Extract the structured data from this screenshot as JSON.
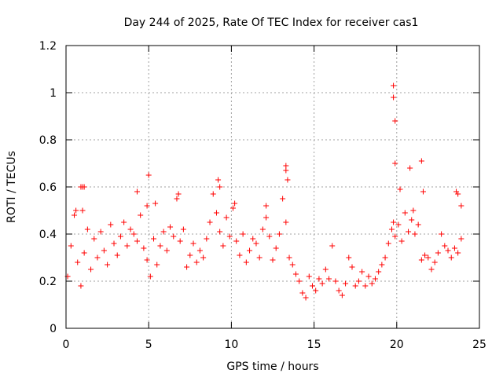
{
  "chart_data": {
    "type": "scatter",
    "title": "Day 244 of 2025, Rate Of TEC Index for receiver cas1",
    "xlabel": "GPS time / hours",
    "ylabel": "ROTI / TECUs",
    "xlim": [
      0,
      25
    ],
    "ylim": [
      0,
      1.2
    ],
    "xticks": [
      0,
      5,
      10,
      15,
      20,
      25
    ],
    "xtick_labels": [
      "0",
      "5",
      "10",
      "15",
      "20",
      "25"
    ],
    "yticks": [
      0,
      0.2,
      0.4,
      0.6,
      0.8,
      1,
      1.2
    ],
    "ytick_labels": [
      "0",
      "0.2",
      "0.4",
      "0.6",
      "0.8",
      "1",
      "1.2"
    ],
    "grid": true,
    "marker": "plus",
    "color": "#ff0000",
    "series": [
      {
        "x": [
          0.1,
          0.3,
          0.5,
          0.7,
          0.9,
          1.0,
          1.1,
          1.3,
          1.5,
          1.7,
          1.9,
          2.1,
          2.3,
          2.5,
          2.7,
          2.9,
          3.1,
          3.3,
          3.5,
          3.7,
          3.9,
          4.1,
          4.3,
          4.5,
          4.7,
          4.9,
          5.1,
          5.3,
          5.5,
          5.7,
          5.9,
          6.1,
          6.3,
          6.5,
          6.7,
          6.9,
          7.1,
          7.3,
          7.5,
          7.7,
          7.9,
          8.1,
          8.3,
          8.5,
          8.7,
          8.9,
          9.1,
          9.3,
          9.5,
          9.7,
          9.9,
          10.1,
          10.3,
          10.5,
          10.7,
          10.9,
          11.1,
          11.3,
          11.5,
          11.7,
          11.9,
          12.1,
          12.3,
          12.5,
          12.7,
          12.9,
          13.1,
          13.3,
          13.5,
          13.7,
          13.9,
          14.1,
          14.3,
          14.5,
          14.7,
          14.9,
          15.1,
          15.3,
          15.5,
          15.7,
          15.9,
          16.1,
          16.3,
          16.5,
          16.7,
          16.9,
          17.1,
          17.3,
          17.5,
          17.7,
          17.9,
          18.1,
          18.3,
          18.5,
          18.7,
          18.9,
          19.1,
          19.3,
          19.5,
          19.7,
          19.8,
          19.9,
          20.1,
          20.3,
          20.5,
          20.7,
          20.9,
          21.1,
          21.3,
          21.5,
          21.7,
          21.9,
          22.1,
          22.3,
          22.5,
          22.7,
          22.9,
          23.1,
          23.3,
          23.5,
          23.7,
          23.9,
          0.6,
          0.9,
          1.0,
          1.1,
          4.3,
          4.9,
          5.0,
          5.4,
          6.8,
          9.2,
          9.3,
          10.2,
          12.1,
          13.3,
          13.3,
          13.4,
          19.8,
          19.8,
          19.9,
          19.9,
          20.2,
          20.8,
          21.0,
          21.5,
          21.6,
          23.6,
          23.7,
          23.9
        ],
        "y": [
          0.22,
          0.35,
          0.48,
          0.28,
          0.18,
          0.5,
          0.32,
          0.42,
          0.25,
          0.38,
          0.3,
          0.41,
          0.33,
          0.27,
          0.44,
          0.36,
          0.31,
          0.39,
          0.45,
          0.35,
          0.42,
          0.4,
          0.37,
          0.48,
          0.34,
          0.29,
          0.22,
          0.38,
          0.27,
          0.35,
          0.41,
          0.33,
          0.43,
          0.39,
          0.55,
          0.37,
          0.42,
          0.26,
          0.31,
          0.36,
          0.28,
          0.33,
          0.3,
          0.38,
          0.45,
          0.57,
          0.49,
          0.41,
          0.35,
          0.47,
          0.39,
          0.51,
          0.37,
          0.31,
          0.4,
          0.28,
          0.33,
          0.38,
          0.36,
          0.3,
          0.42,
          0.47,
          0.39,
          0.29,
          0.34,
          0.4,
          0.55,
          0.45,
          0.3,
          0.27,
          0.23,
          0.2,
          0.15,
          0.13,
          0.22,
          0.18,
          0.16,
          0.21,
          0.19,
          0.25,
          0.21,
          0.35,
          0.2,
          0.16,
          0.14,
          0.19,
          0.3,
          0.26,
          0.18,
          0.2,
          0.24,
          0.18,
          0.22,
          0.19,
          0.21,
          0.24,
          0.27,
          0.3,
          0.36,
          0.42,
          0.45,
          0.39,
          0.44,
          0.37,
          0.49,
          0.41,
          0.46,
          0.4,
          0.44,
          0.29,
          0.31,
          0.3,
          0.25,
          0.28,
          0.32,
          0.4,
          0.35,
          0.33,
          0.3,
          0.34,
          0.32,
          0.38,
          0.5,
          0.6,
          0.6,
          0.6,
          0.58,
          0.52,
          0.65,
          0.53,
          0.57,
          0.63,
          0.6,
          0.53,
          0.52,
          0.69,
          0.67,
          0.63,
          1.03,
          0.98,
          0.88,
          0.7,
          0.59,
          0.68,
          0.5,
          0.71,
          0.58,
          0.58,
          0.57,
          0.52
        ]
      }
    ]
  }
}
